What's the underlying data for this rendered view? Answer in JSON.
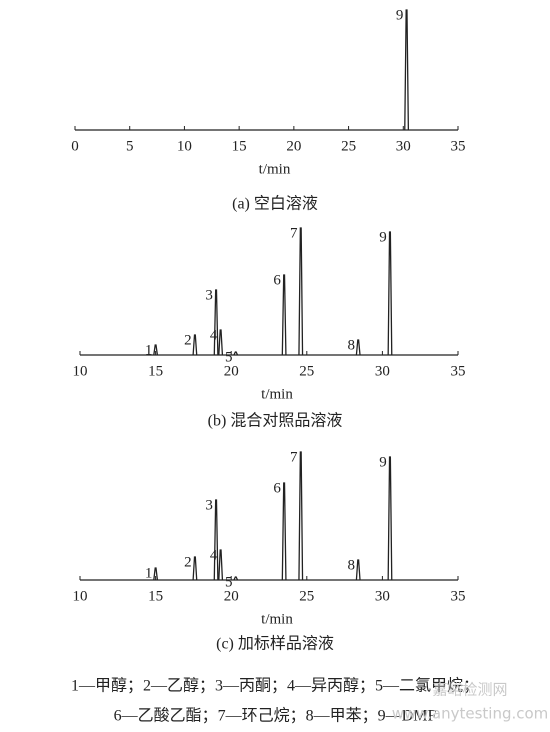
{
  "chart_data": [
    {
      "type": "line",
      "caption": "(a) 空白溶液",
      "xlabel": "t/min",
      "xlim": [
        0,
        35
      ],
      "xticks": [
        0,
        5,
        10,
        15,
        20,
        25,
        30,
        35
      ],
      "ylim": [
        0,
        130
      ],
      "peak_labels": [
        "9"
      ],
      "x": [
        30.3
      ],
      "values": [
        120
      ],
      "color": "#222"
    },
    {
      "type": "line",
      "caption": "(b) 混合对照品溶液",
      "xlabel": "t/min",
      "xlim": [
        10,
        35
      ],
      "xticks": [
        10,
        15,
        20,
        25,
        30,
        35
      ],
      "ylim": [
        0,
        130
      ],
      "peak_labels": [
        "1",
        "2",
        "3",
        "4",
        "5",
        "6",
        "7",
        "8",
        "9"
      ],
      "x": [
        15.0,
        17.6,
        19.0,
        19.3,
        20.3,
        23.5,
        24.6,
        28.4,
        30.5
      ],
      "values": [
        10,
        20,
        65,
        25,
        3,
        80,
        127,
        15,
        123
      ],
      "color": "#222"
    },
    {
      "type": "line",
      "caption": "(c) 加标样品溶液",
      "xlabel": "t/min",
      "xlim": [
        10,
        35
      ],
      "xticks": [
        10,
        15,
        20,
        25,
        30,
        35
      ],
      "ylim": [
        0,
        130
      ],
      "peak_labels": [
        "1",
        "2",
        "3",
        "4",
        "5",
        "6",
        "7",
        "8",
        "9"
      ],
      "x": [
        15.0,
        17.6,
        19.0,
        19.3,
        20.3,
        23.5,
        24.6,
        28.4,
        30.5
      ],
      "values": [
        12,
        23,
        80,
        30,
        3,
        97,
        128,
        20,
        123
      ],
      "color": "#222"
    }
  ],
  "legend": [
    "1—甲醇；2—乙醇；3—丙酮；4—异丙醇；5—二氯甲烷；",
    "6—乙酸乙酯；7—环己烷；8—甲苯；9—DMF"
  ],
  "watermark": [
    "嘉峪检测网",
    "www.anytesting.com"
  ]
}
